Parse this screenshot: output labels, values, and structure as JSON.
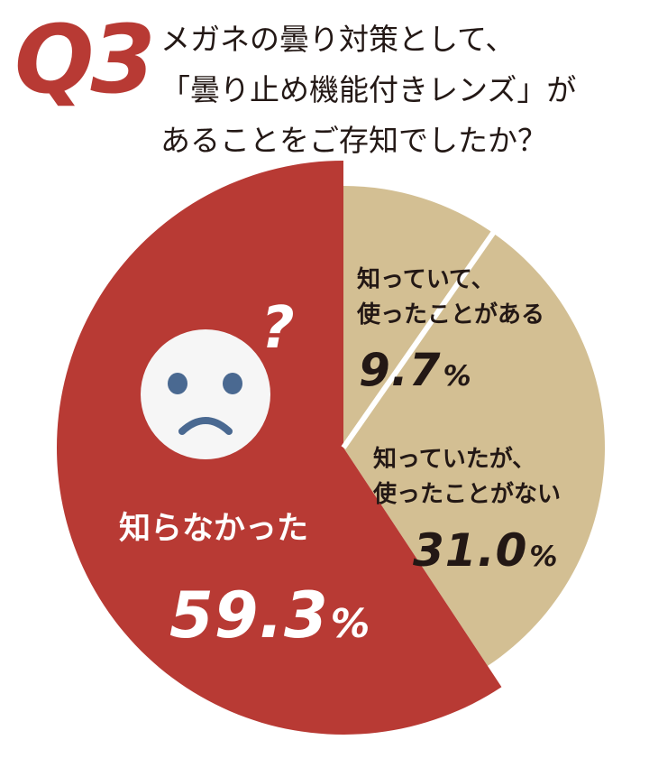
{
  "header": {
    "q_number": "Q3",
    "question_lines": [
      "メガネの曇り対策として、",
      "「曇り止め機能付きレンズ」が",
      "あることをご存知でしたか？"
    ]
  },
  "chart_data": {
    "type": "pie",
    "start_angle_deg": 0,
    "direction": "clockwise",
    "slices": [
      {
        "label_lines": [
          "知っていて、",
          "使ったことがある"
        ],
        "value": 9.7,
        "value_text": "9.7",
        "unit": "%",
        "color": "#d3bf93"
      },
      {
        "label_lines": [
          "知っていたが、",
          "使ったことがない"
        ],
        "value": 31.0,
        "value_text": "31.0",
        "unit": "%",
        "color": "#d3bf93"
      },
      {
        "label_lines": [
          "知らなかった"
        ],
        "value": 59.3,
        "value_text": "59.3",
        "unit": "%",
        "color": "#b83a34"
      }
    ],
    "annotations": [
      {
        "type": "sad-face-icon",
        "color": "#f6f6f6",
        "feature_color": "#4a6991"
      },
      {
        "type": "question-mark",
        "text": "?",
        "color": "#ffffff"
      }
    ]
  }
}
